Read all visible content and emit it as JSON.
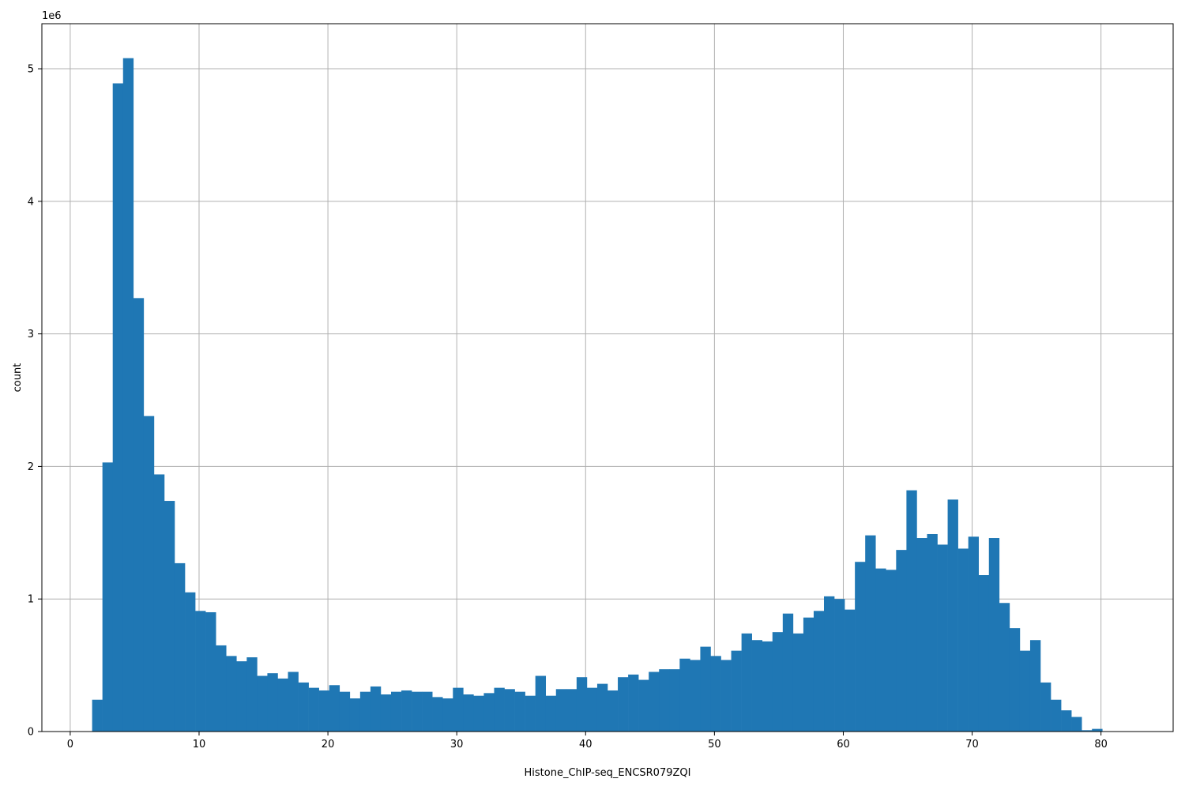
{
  "chart_data": {
    "type": "bar",
    "subtype": "histogram",
    "xlabel": "Histone_ChIP-seq_ENCSR079ZQI",
    "ylabel": "count",
    "y_multiplier_label": "1e6",
    "xlim": [
      -2.2,
      85.6
    ],
    "ylim": [
      0,
      5.34
    ],
    "x_ticks": [
      0,
      10,
      20,
      30,
      40,
      50,
      60,
      70,
      80
    ],
    "y_ticks": [
      0,
      1,
      2,
      3,
      4,
      5
    ],
    "grid": true,
    "bar_color": "#1f77b4",
    "bin_start": 1.7,
    "bin_width": 0.8,
    "values": [
      0.24,
      2.03,
      4.89,
      5.08,
      3.27,
      2.38,
      1.94,
      1.74,
      1.27,
      1.05,
      0.91,
      0.9,
      0.65,
      0.57,
      0.53,
      0.56,
      0.42,
      0.44,
      0.4,
      0.45,
      0.37,
      0.33,
      0.31,
      0.35,
      0.3,
      0.25,
      0.3,
      0.34,
      0.28,
      0.3,
      0.31,
      0.3,
      0.3,
      0.26,
      0.25,
      0.33,
      0.28,
      0.27,
      0.29,
      0.33,
      0.32,
      0.3,
      0.27,
      0.42,
      0.27,
      0.32,
      0.32,
      0.41,
      0.33,
      0.36,
      0.31,
      0.41,
      0.43,
      0.39,
      0.45,
      0.47,
      0.47,
      0.55,
      0.54,
      0.64,
      0.57,
      0.54,
      0.61,
      0.74,
      0.69,
      0.68,
      0.75,
      0.89,
      0.74,
      0.86,
      0.91,
      1.02,
      1.0,
      0.92,
      1.28,
      1.48,
      1.23,
      1.22,
      1.37,
      1.82,
      1.46,
      1.49,
      1.41,
      1.75,
      1.38,
      1.47,
      1.18,
      1.46,
      0.97,
      0.78,
      0.61,
      0.69,
      0.37,
      0.24,
      0.16,
      0.11,
      0.01,
      0.02
    ]
  }
}
